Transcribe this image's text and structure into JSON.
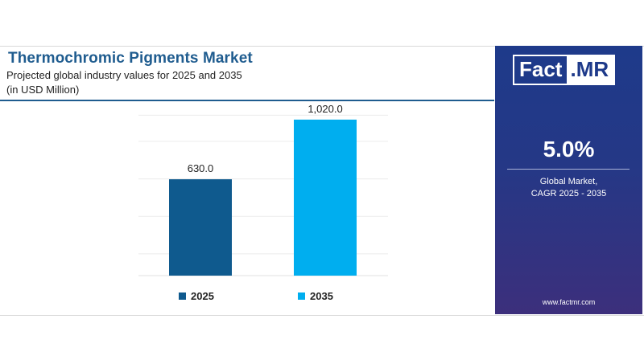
{
  "header": {
    "title": "Thermochromic Pigments Market",
    "subtitle_line1": "Projected global industry values for 2025 and 2035",
    "subtitle_line2": "(in USD Million)"
  },
  "sidebar": {
    "logo_left": "Fact",
    "logo_right": ".MR",
    "cagr_value": "5.0%",
    "cagr_label_line1": "Global Market,",
    "cagr_label_line2": "CAGR 2025 - 2035",
    "website": "www.factmr.com"
  },
  "colors": {
    "bar_2025": "#0f5a8e",
    "bar_2035": "#00aeef",
    "title": "#1f5c8f",
    "sidebar_bg": "#1e3a8a"
  },
  "chart_data": {
    "type": "bar",
    "title": "Thermochromic Pigments Market",
    "categories": [
      "2025",
      "2035"
    ],
    "values": [
      630.0,
      1020.0
    ],
    "value_labels": [
      "630.0",
      "1,020.0"
    ],
    "ylim": [
      0,
      1140
    ],
    "grid": true,
    "legend": [
      "2025",
      "2035"
    ],
    "legend_position": "bottom"
  }
}
